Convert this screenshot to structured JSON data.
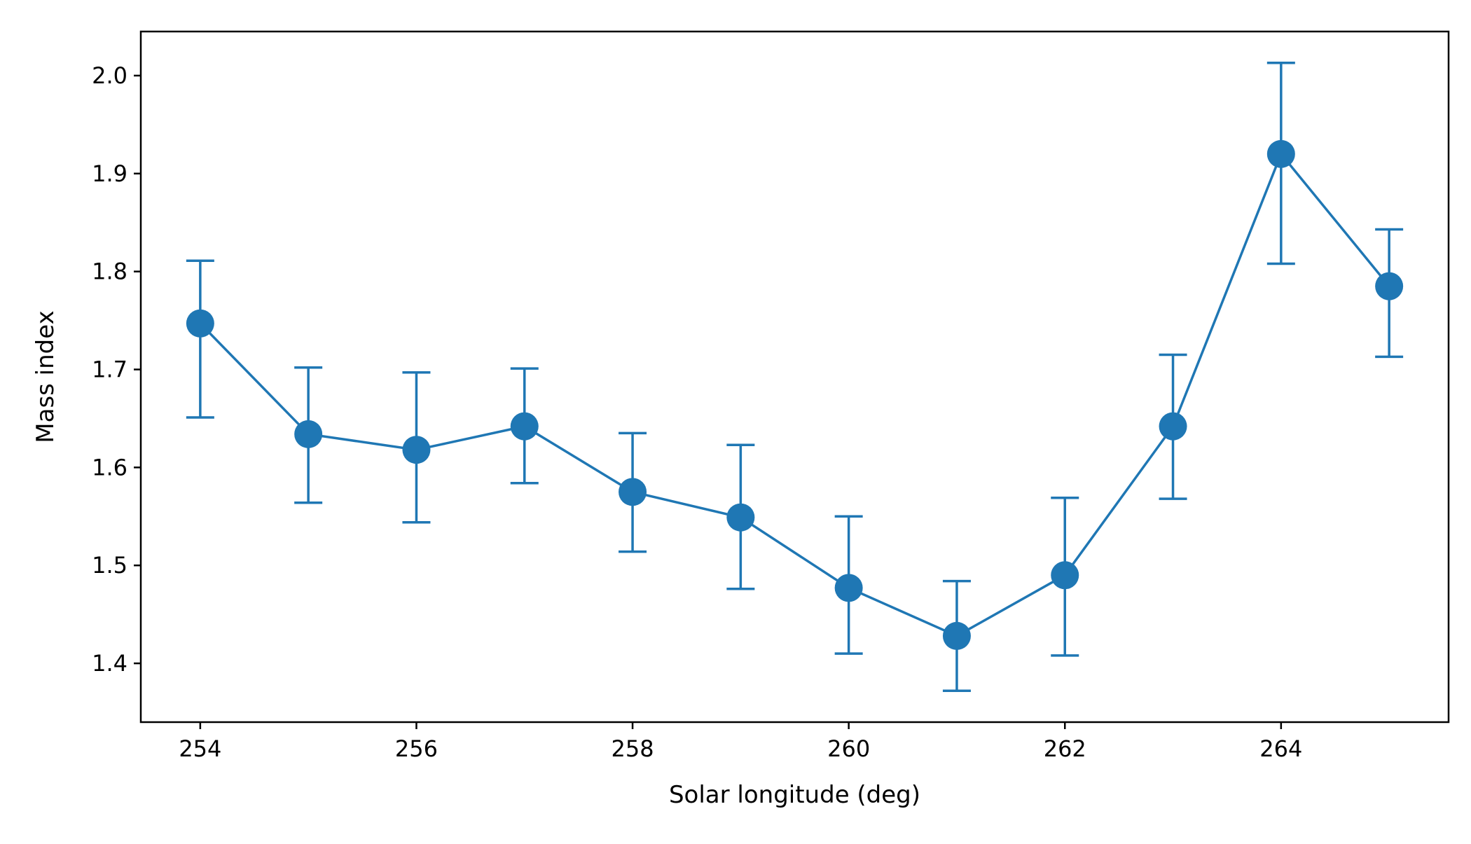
{
  "chart_data": {
    "type": "line",
    "xlabel": "Solar longitude (deg)",
    "ylabel": "Mass index",
    "xlim": [
      253.45,
      265.55
    ],
    "ylim": [
      1.34,
      2.045
    ],
    "xticks": [
      254,
      256,
      258,
      260,
      262,
      264
    ],
    "xtick_labels": [
      "254",
      "256",
      "258",
      "260",
      "262",
      "264"
    ],
    "yticks": [
      1.4,
      1.5,
      1.6,
      1.7,
      1.8,
      1.9,
      2.0
    ],
    "ytick_labels": [
      "1.4",
      "1.5",
      "1.6",
      "1.7",
      "1.8",
      "1.9",
      "2.0"
    ],
    "grid": false,
    "series": [
      {
        "color": "#1f77b4",
        "x": [
          254,
          255,
          256,
          257,
          258,
          259,
          260,
          261,
          262,
          263,
          264,
          265
        ],
        "y": [
          1.747,
          1.634,
          1.618,
          1.642,
          1.575,
          1.549,
          1.477,
          1.428,
          1.49,
          1.642,
          1.92,
          1.785
        ],
        "yerr_low": [
          1.651,
          1.564,
          1.544,
          1.584,
          1.514,
          1.476,
          1.41,
          1.372,
          1.408,
          1.568,
          1.808,
          1.713
        ],
        "yerr_high": [
          1.811,
          1.702,
          1.697,
          1.701,
          1.635,
          1.623,
          1.55,
          1.484,
          1.569,
          1.715,
          2.013,
          1.843
        ]
      }
    ]
  }
}
